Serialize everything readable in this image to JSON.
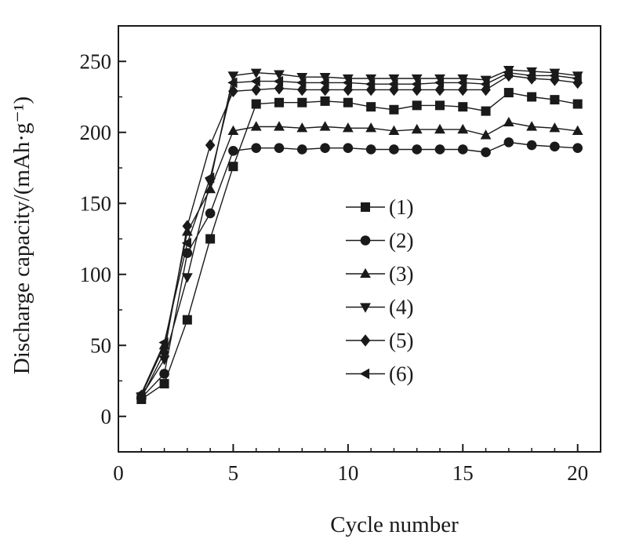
{
  "chart_data": {
    "type": "line",
    "title": "",
    "xlabel": "Cycle number",
    "ylabel": "Discharge capacity/(mAh·g⁻¹)",
    "xlim": [
      0,
      21
    ],
    "ylim": [
      -25,
      275
    ],
    "xticks": [
      0,
      5,
      10,
      15,
      20
    ],
    "yticks": [
      0,
      50,
      100,
      150,
      200,
      250
    ],
    "grid": false,
    "legend": "center-right",
    "x": [
      1,
      2,
      3,
      4,
      5,
      6,
      7,
      8,
      9,
      10,
      11,
      12,
      13,
      14,
      15,
      16,
      17,
      18,
      19,
      20
    ],
    "series": [
      {
        "name": "(1)",
        "marker": "square",
        "values": [
          12,
          23,
          68,
          125,
          176,
          220,
          221,
          221,
          222,
          221,
          218,
          216,
          219,
          219,
          218,
          215,
          228,
          225,
          223,
          220
        ]
      },
      {
        "name": "(2)",
        "marker": "circle",
        "values": [
          13,
          30,
          115,
          143,
          187,
          189,
          189,
          188,
          189,
          189,
          188,
          188,
          188,
          188,
          188,
          186,
          193,
          191,
          190,
          189
        ]
      },
      {
        "name": "(3)",
        "marker": "triangle-up",
        "values": [
          15,
          50,
          130,
          160,
          201,
          204,
          204,
          203,
          204,
          203,
          203,
          201,
          202,
          202,
          202,
          198,
          207,
          204,
          203,
          201
        ]
      },
      {
        "name": "(4)",
        "marker": "triangle-down",
        "values": [
          14,
          40,
          98,
          165,
          240,
          242,
          241,
          239,
          239,
          238,
          238,
          238,
          238,
          238,
          238,
          237,
          244,
          243,
          242,
          240
        ]
      },
      {
        "name": "(5)",
        "marker": "diamond",
        "values": [
          13,
          45,
          134,
          191,
          229,
          230,
          231,
          230,
          230,
          230,
          230,
          230,
          230,
          230,
          230,
          230,
          240,
          238,
          237,
          235
        ]
      },
      {
        "name": "(6)",
        "marker": "triangle-left",
        "values": [
          16,
          52,
          122,
          168,
          235,
          236,
          236,
          235,
          235,
          235,
          234,
          234,
          234,
          235,
          235,
          234,
          242,
          240,
          240,
          238
        ]
      }
    ],
    "line_color": "#1a1a1a"
  }
}
